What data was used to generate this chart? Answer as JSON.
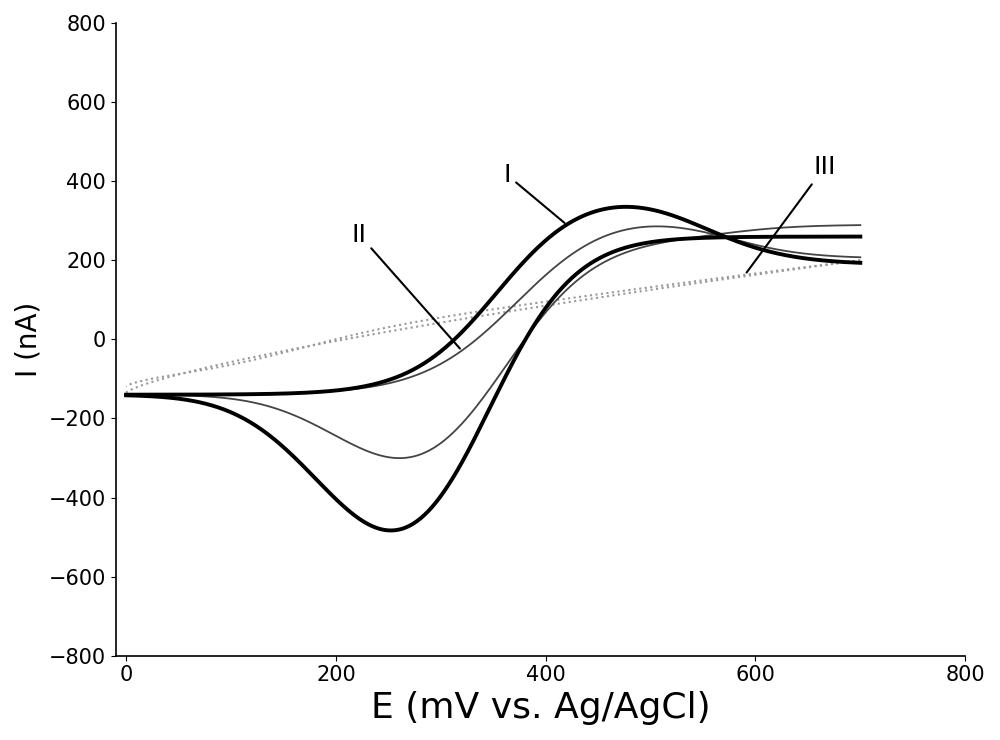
{
  "xlabel": "E (mV vs. Ag/AgCl)",
  "ylabel": "I (nA)",
  "xlim": [
    -10,
    800
  ],
  "ylim": [
    -800,
    800
  ],
  "xticks": [
    0,
    200,
    400,
    600,
    800
  ],
  "yticks": [
    -800,
    -600,
    -400,
    -200,
    0,
    200,
    400,
    600,
    800
  ],
  "xlabel_fontsize": 26,
  "ylabel_fontsize": 20,
  "tick_fontsize": 15,
  "background_color": "#ffffff",
  "curve_I_color": "#000000",
  "curve_I_linewidth": 2.8,
  "curve_II_color": "#444444",
  "curve_II_linewidth": 1.3,
  "curve_III_color": "#999999",
  "curve_III_linestyle": "dotted",
  "curve_III_linewidth": 1.5,
  "label_I": "I",
  "label_II": "II",
  "label_III": "III",
  "annotation_fontsize": 18
}
